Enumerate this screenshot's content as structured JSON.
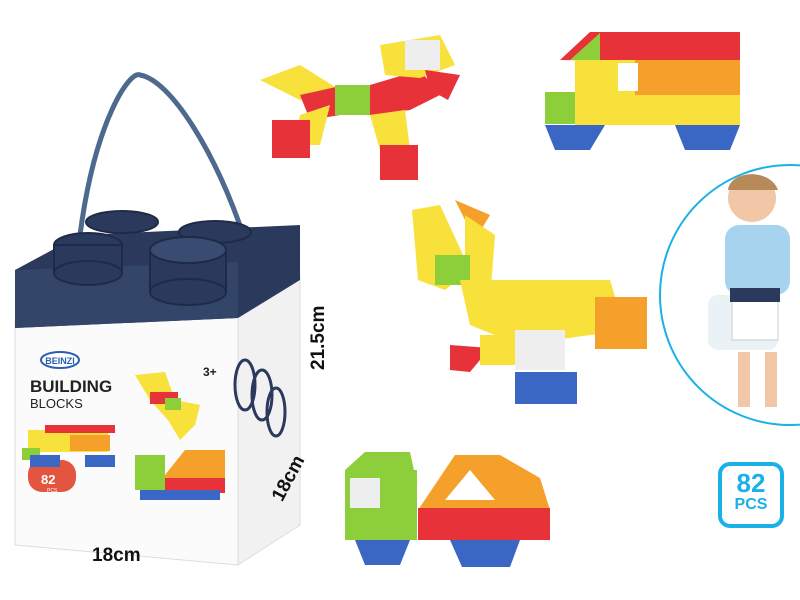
{
  "dimensions": {
    "width": "18cm",
    "depth": "18cm",
    "height": "21.5cm"
  },
  "badge": {
    "count": "82",
    "unit": "PCS",
    "color": "#1ab0e8"
  },
  "box": {
    "brand": "BEINZI",
    "title_line1": "BUILDING",
    "title_line2": "BLOCKS",
    "age": "3+",
    "count": "82",
    "count_unit": "PCS",
    "lid_color": "#2b3a5c"
  },
  "block_colors": {
    "red": "#e8323a",
    "yellow": "#f7e13a",
    "orange": "#f5a02a",
    "green": "#8ccf3a",
    "blue": "#3a66c4",
    "white": "#eeeeee"
  }
}
